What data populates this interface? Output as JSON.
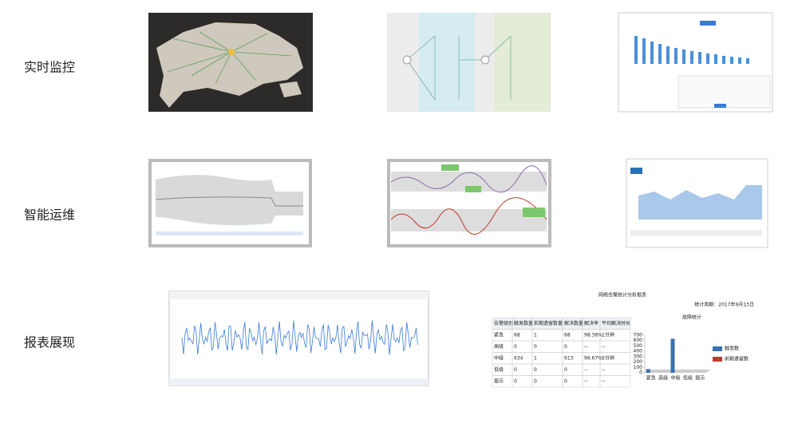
{
  "sections": [
    {
      "label": "实时监控"
    },
    {
      "label": "智能运维"
    },
    {
      "label": "报表展现"
    }
  ],
  "report": {
    "title": "网络告警统计分析报表",
    "period": "统计周期：2017年9月13日",
    "table": {
      "header": [
        "告警级别",
        "触发数量",
        "前期遗留数量",
        "解决数量",
        "解决率",
        "平均解决时长"
      ],
      "rows": [
        [
          "紧急",
          "68",
          "1",
          "68",
          "98.38%",
          "1分钟"
        ],
        [
          "高级",
          "0",
          "0",
          "0",
          "--",
          "--"
        ],
        [
          "中级",
          "634",
          "1",
          "613",
          "96.67%",
          "5分钟"
        ],
        [
          "低级",
          "0",
          "0",
          "0",
          "--",
          "--"
        ],
        [
          "提示",
          "0",
          "0",
          "0",
          "--",
          "--"
        ]
      ]
    },
    "chart": {
      "type": "bar",
      "title": "故障统计",
      "ylim": [
        0,
        700
      ],
      "yticks": [
        0,
        100,
        200,
        300,
        400,
        500,
        600,
        700
      ],
      "categories": [
        "紧急",
        "高级",
        "中级",
        "低级",
        "提示"
      ],
      "series": [
        {
          "name": "触发数",
          "color": "#3a6fb0",
          "values": [
            68,
            0,
            634,
            0,
            0
          ]
        },
        {
          "name": "前期遗留数",
          "color": "#c0392b",
          "values": [
            1,
            0,
            1,
            0,
            0
          ]
        }
      ]
    }
  }
}
